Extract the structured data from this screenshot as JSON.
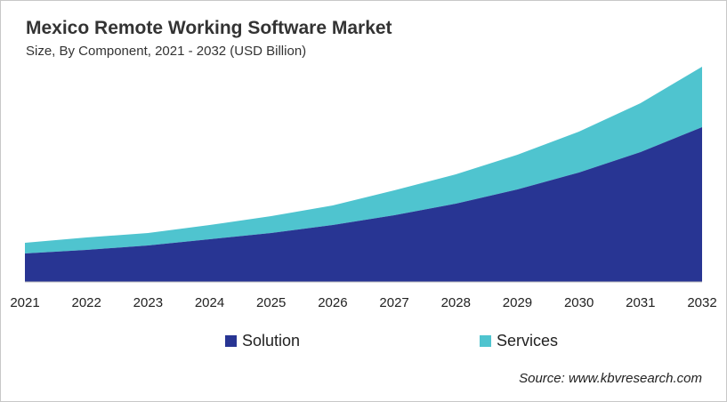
{
  "chart_data": {
    "type": "area",
    "stacked": true,
    "title": "Mexico Remote Working Software Market",
    "subtitle": "Size, By Component, 2021 - 2032 (USD Billion)",
    "categories": [
      "2021",
      "2022",
      "2023",
      "2024",
      "2025",
      "2026",
      "2027",
      "2028",
      "2029",
      "2030",
      "2031",
      "2032"
    ],
    "series": [
      {
        "name": "Solution",
        "color": "#283593",
        "values": [
          32,
          36,
          41,
          48,
          55,
          64,
          75,
          88,
          104,
          123,
          146,
          174
        ]
      },
      {
        "name": "Services",
        "color": "#4fc4cf",
        "values": [
          12,
          14,
          14,
          16,
          19,
          22,
          28,
          33,
          39,
          46,
          55,
          68
        ]
      }
    ],
    "ylim": [
      0,
      242
    ],
    "y_axis_shown": false,
    "grid": false,
    "legend_position": "bottom",
    "source": "Source: www.kbvresearch.com"
  }
}
